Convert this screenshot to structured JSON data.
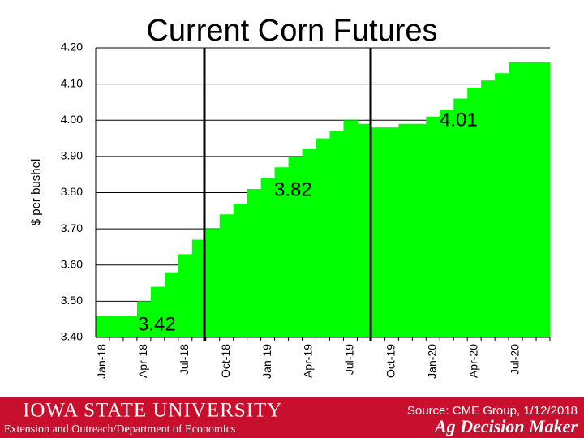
{
  "chart_data": {
    "type": "area",
    "title": "Current Corn Futures",
    "y_label": "$ per bushel",
    "categories": [
      "Jan-18",
      null,
      null,
      "Apr-18",
      null,
      null,
      "Jul-18",
      null,
      null,
      "Oct-18",
      null,
      null,
      "Jan-19",
      null,
      null,
      "Apr-19",
      null,
      null,
      "Jul-19",
      null,
      null,
      "Oct-19",
      null,
      null,
      "Jan-20",
      null,
      null,
      "Apr-20",
      null,
      null,
      "Jul-20",
      null,
      null
    ],
    "values": [
      3.46,
      3.46,
      3.46,
      3.5,
      3.54,
      3.58,
      3.63,
      3.67,
      3.7,
      3.74,
      3.77,
      3.81,
      3.84,
      3.87,
      3.9,
      3.92,
      3.95,
      3.97,
      4.0,
      3.99,
      3.98,
      3.98,
      3.99,
      3.99,
      4.01,
      4.03,
      4.06,
      4.09,
      4.11,
      4.13,
      4.16,
      4.16,
      4.16
    ],
    "color": "#00ff00",
    "ylim": [
      3.4,
      4.2
    ],
    "yticks": [
      {
        "value": 3.4,
        "label": "3.40"
      },
      {
        "value": 3.5,
        "label": "3.50"
      },
      {
        "value": 3.6,
        "label": "3.60"
      },
      {
        "value": 3.7,
        "label": "3.70"
      },
      {
        "value": 3.8,
        "label": "3.80"
      },
      {
        "value": 3.9,
        "label": "3.90"
      },
      {
        "value": 4.0,
        "label": "4.00"
      },
      {
        "value": 4.1,
        "label": "4.10"
      },
      {
        "value": 4.2,
        "label": "4.20"
      }
    ],
    "grid": true,
    "annotations": [
      "3.42",
      "3.82",
      "4.01"
    ]
  },
  "footer": {
    "university": "Iowa State University",
    "department": "Extension and Outreach/Department of Economics",
    "source": "Source: CME Group, 1/12/2018",
    "brand": "Ag Decision Maker"
  }
}
